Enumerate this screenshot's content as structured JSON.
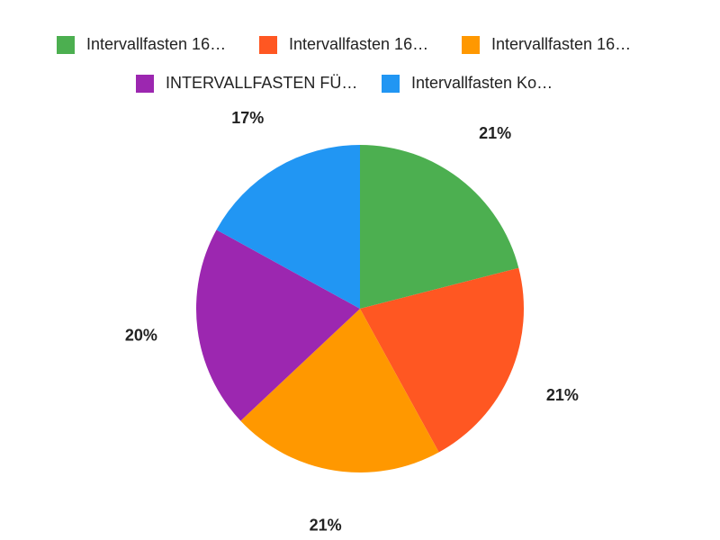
{
  "chart_data": {
    "type": "pie",
    "categories": [
      "Intervallfasten 16…",
      "Intervallfasten 16…",
      "Intervallfasten 16…",
      "INTERVALLFASTEN FÜ…",
      "Intervallfasten Ko…"
    ],
    "values": [
      21,
      21,
      21,
      20,
      17
    ],
    "value_labels": [
      "21%",
      "21%",
      "21%",
      "20%",
      "17%"
    ],
    "colors": [
      "#4caf50",
      "#ff5722",
      "#ff9800",
      "#9c27b0",
      "#2196f3"
    ],
    "legend": "top"
  }
}
